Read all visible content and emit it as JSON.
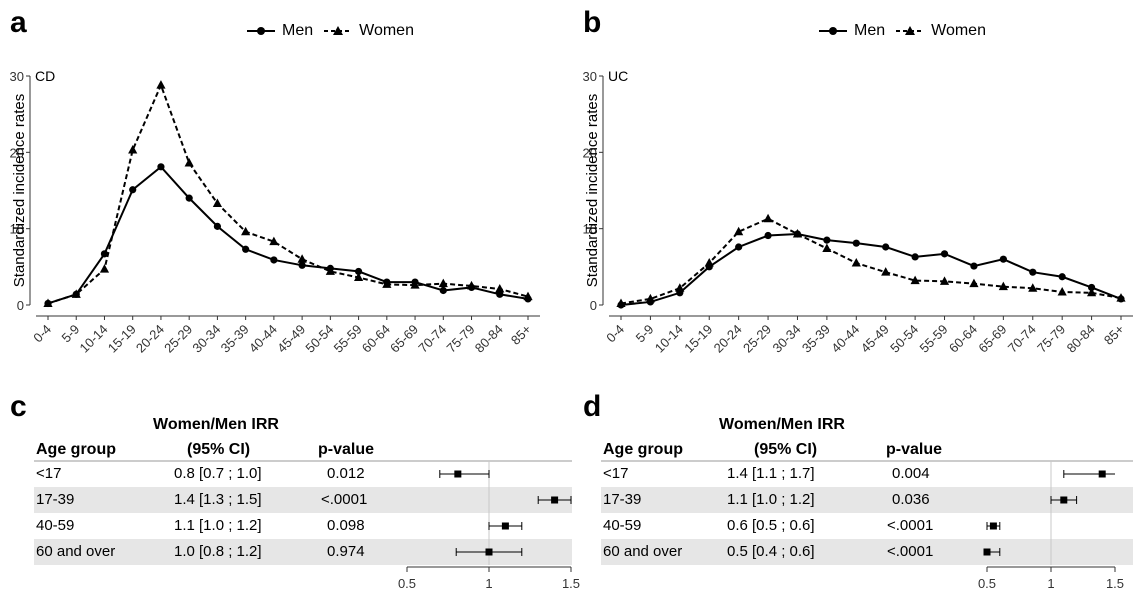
{
  "panels": {
    "a": {
      "letter": "a"
    },
    "b": {
      "letter": "b"
    },
    "c": {
      "letter": "c"
    },
    "d": {
      "letter": "d"
    }
  },
  "legend": {
    "men": "Men",
    "women": "Women"
  },
  "colors": {
    "line": "#000000",
    "shade": "#e6e6e6",
    "axis": "#333333",
    "ref": "#cccccc"
  },
  "chart_data": [
    {
      "id": "a",
      "type": "line",
      "tag": "CD",
      "ylabel": "Standardized incidence rates",
      "ylim": [
        0,
        30
      ],
      "yticks": [
        0,
        10,
        20,
        30
      ],
      "categories": [
        "0-4",
        "5-9",
        "10-14",
        "15-19",
        "20-24",
        "25-29",
        "30-34",
        "35-39",
        "40-44",
        "45-49",
        "50-54",
        "55-59",
        "60-64",
        "65-69",
        "70-74",
        "75-79",
        "80-84",
        "85+"
      ],
      "series": [
        {
          "name": "Men",
          "style": "solid",
          "marker": "circle",
          "values": [
            0.2,
            1.4,
            6.7,
            15.1,
            18.1,
            14.0,
            10.3,
            7.3,
            5.9,
            5.2,
            4.8,
            4.4,
            3.0,
            3.0,
            1.9,
            2.3,
            1.4,
            0.8
          ]
        },
        {
          "name": "Women",
          "style": "dashed",
          "marker": "triangle",
          "values": [
            0.2,
            1.4,
            4.7,
            20.3,
            28.8,
            18.6,
            13.3,
            9.6,
            8.3,
            6.0,
            4.4,
            3.6,
            2.7,
            2.6,
            2.8,
            2.5,
            2.1,
            1.1
          ]
        }
      ]
    },
    {
      "id": "b",
      "type": "line",
      "tag": "UC",
      "ylabel": "Standardized incidence rates",
      "ylim": [
        0,
        30
      ],
      "yticks": [
        0,
        10,
        20,
        30
      ],
      "categories": [
        "0-4",
        "5-9",
        "10-14",
        "15-19",
        "20-24",
        "25-29",
        "30-34",
        "35-39",
        "40-44",
        "45-49",
        "50-54",
        "55-59",
        "60-64",
        "65-69",
        "70-74",
        "75-79",
        "80-84",
        "85+"
      ],
      "series": [
        {
          "name": "Men",
          "style": "solid",
          "marker": "circle",
          "values": [
            0.0,
            0.4,
            1.6,
            5.0,
            7.6,
            9.1,
            9.3,
            8.5,
            8.1,
            7.6,
            6.3,
            6.7,
            5.1,
            6.0,
            4.3,
            3.7,
            2.3,
            0.8
          ]
        },
        {
          "name": "Women",
          "style": "dashed",
          "marker": "triangle",
          "values": [
            0.2,
            0.8,
            2.2,
            5.5,
            9.6,
            11.3,
            9.3,
            7.4,
            5.5,
            4.3,
            3.2,
            3.1,
            2.8,
            2.4,
            2.2,
            1.7,
            1.6,
            0.9
          ]
        }
      ]
    },
    {
      "id": "c",
      "type": "table",
      "title": "Women/Men IRR",
      "headers": [
        "Age group",
        "(95% CI)",
        "p-value"
      ],
      "rows": [
        {
          "group": "<17",
          "ci": "0.8 [0.7 ; 1.0]",
          "p": "0.012",
          "est": 0.81,
          "lo": 0.7,
          "hi": 1.0
        },
        {
          "group": "17-39",
          "ci": "1.4 [1.3 ; 1.5]",
          "p": "<.0001",
          "est": 1.4,
          "lo": 1.3,
          "hi": 1.5
        },
        {
          "group": "40-59",
          "ci": "1.1 [1.0 ; 1.2]",
          "p": "0.098",
          "est": 1.1,
          "lo": 1.0,
          "hi": 1.2
        },
        {
          "group": "60 and over",
          "ci": "1.0 [0.8 ; 1.2]",
          "p": "0.974",
          "est": 1.0,
          "lo": 0.8,
          "hi": 1.2
        }
      ],
      "xlim": [
        0.5,
        1.5
      ],
      "xticks": [
        "0.5",
        "1",
        "1.5"
      ],
      "ref": 1
    },
    {
      "id": "d",
      "type": "table",
      "title": "Women/Men IRR",
      "headers": [
        "Age group",
        "(95% CI)",
        "p-value"
      ],
      "rows": [
        {
          "group": "<17",
          "ci": "1.4 [1.1 ; 1.7]",
          "p": "0.004",
          "est": 1.4,
          "lo": 1.1,
          "hi": 1.7
        },
        {
          "group": "17-39",
          "ci": "1.1 [1.0 ; 1.2]",
          "p": "0.036",
          "est": 1.1,
          "lo": 1.0,
          "hi": 1.2
        },
        {
          "group": "40-59",
          "ci": "0.6 [0.5 ; 0.6]",
          "p": "<.0001",
          "est": 0.55,
          "lo": 0.5,
          "hi": 0.6
        },
        {
          "group": "60 and over",
          "ci": "0.5 [0.4 ; 0.6]",
          "p": "<.0001",
          "est": 0.5,
          "lo": 0.4,
          "hi": 0.6
        }
      ],
      "xlim": [
        0.5,
        1.5
      ],
      "xticks": [
        "0.5",
        "1",
        "1.5"
      ],
      "ref": 1
    }
  ]
}
